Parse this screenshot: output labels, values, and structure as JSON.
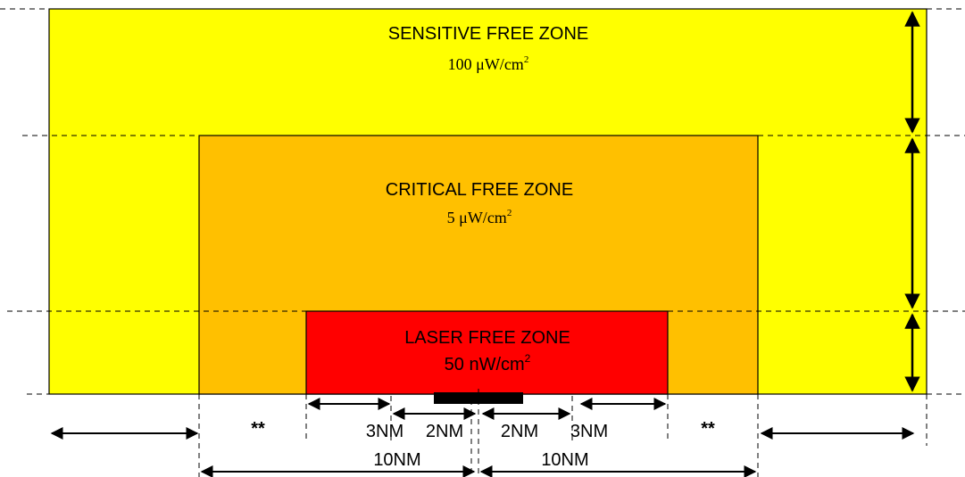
{
  "zones": {
    "sensitive": {
      "title": "SENSITIVE FREE ZONE",
      "value": "100 μW/cm",
      "unit_exp": "2",
      "fill": "#FFFF00"
    },
    "critical": {
      "title": "CRITICAL FREE ZONE",
      "value": "5 μW/cm",
      "unit_exp": "2",
      "fill": "#FFC000"
    },
    "laser": {
      "title": "LASER FREE ZONE",
      "value": "50 nW/cm",
      "unit_exp": "2",
      "fill": "#FF0000"
    }
  },
  "dimensions": {
    "left_marker": "**",
    "right_marker": "**",
    "inner_left_3": "3NM",
    "inner_left_2": "2NM",
    "inner_right_2": "2NM",
    "inner_right_3": "3NM",
    "left_10": "10NM",
    "right_10": "10NM"
  },
  "colors": {
    "line": "#000000",
    "runway": "#000000"
  }
}
